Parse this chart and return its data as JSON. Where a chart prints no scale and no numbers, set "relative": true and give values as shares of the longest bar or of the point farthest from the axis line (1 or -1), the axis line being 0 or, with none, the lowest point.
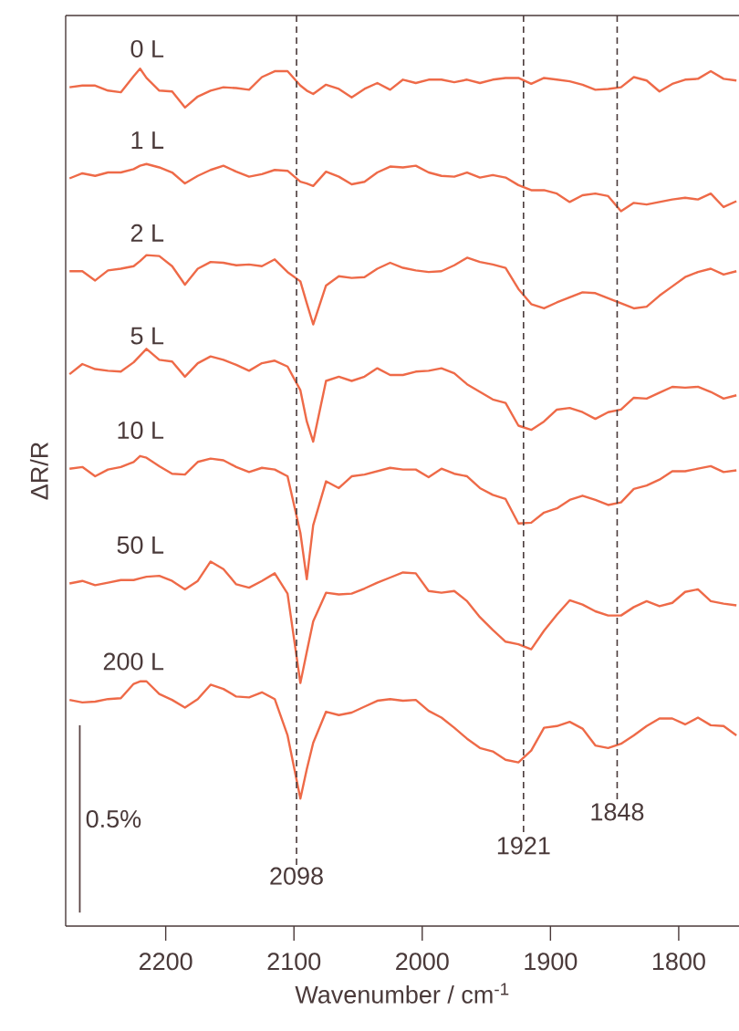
{
  "chart_data": {
    "type": "line",
    "relative": true,
    "xlabel": "Wavenumber / cm$^{-1}$",
    "ylabel": "ΔR/R",
    "x": [
      2275,
      2265,
      2255,
      2245,
      2235,
      2225,
      2220,
      2215,
      2205,
      2195,
      2185,
      2175,
      2165,
      2155,
      2145,
      2135,
      2125,
      2115,
      2105,
      2095,
      2090,
      2085,
      2075,
      2065,
      2055,
      2045,
      2035,
      2025,
      2015,
      2005,
      1995,
      1985,
      1975,
      1965,
      1955,
      1945,
      1935,
      1925,
      1915,
      1905,
      1895,
      1885,
      1875,
      1865,
      1855,
      1845,
      1835,
      1825,
      1815,
      1805,
      1795,
      1785,
      1775,
      1765,
      1755
    ],
    "xlim": [
      2278,
      1753
    ],
    "xticks": [
      2200,
      2100,
      2000,
      1900,
      1800
    ],
    "tick_labels": "x",
    "marker": "none",
    "line_style": "solid",
    "series": [
      {
        "name": "0 L",
        "color": "#ee6a48",
        "values": [
          0.978,
          0.98,
          0.98,
          0.974,
          0.972,
          0.991,
          1.0,
          0.989,
          0.974,
          0.973,
          0.954,
          0.967,
          0.974,
          0.978,
          0.977,
          0.975,
          0.99,
          0.997,
          0.997,
          0.98,
          0.974,
          0.97,
          0.981,
          0.976,
          0.966,
          0.976,
          0.983,
          0.975,
          0.987,
          0.983,
          0.987,
          0.987,
          0.984,
          0.987,
          0.983,
          0.987,
          0.989,
          0.989,
          0.982,
          0.989,
          0.987,
          0.985,
          0.981,
          0.975,
          0.976,
          0.978,
          0.99,
          0.986,
          0.973,
          0.982,
          0.987,
          0.988,
          0.997,
          0.988,
          0.986
        ]
      },
      {
        "name": "1 L",
        "color": "#ee6a48",
        "values": [
          0.87,
          0.876,
          0.873,
          0.877,
          0.877,
          0.881,
          0.885,
          0.887,
          0.883,
          0.877,
          0.864,
          0.873,
          0.88,
          0.885,
          0.878,
          0.872,
          0.875,
          0.88,
          0.879,
          0.866,
          0.864,
          0.861,
          0.878,
          0.872,
          0.863,
          0.866,
          0.877,
          0.884,
          0.883,
          0.885,
          0.877,
          0.873,
          0.872,
          0.877,
          0.871,
          0.874,
          0.871,
          0.862,
          0.856,
          0.856,
          0.852,
          0.842,
          0.85,
          0.852,
          0.849,
          0.831,
          0.841,
          0.839,
          0.842,
          0.845,
          0.847,
          0.845,
          0.852,
          0.836,
          0.843
        ]
      },
      {
        "name": "2 L",
        "color": "#ee6a48",
        "values": [
          0.76,
          0.76,
          0.749,
          0.761,
          0.763,
          0.766,
          0.772,
          0.779,
          0.778,
          0.766,
          0.744,
          0.763,
          0.771,
          0.77,
          0.767,
          0.768,
          0.766,
          0.774,
          0.759,
          0.748,
          0.722,
          0.697,
          0.743,
          0.754,
          0.752,
          0.753,
          0.763,
          0.77,
          0.764,
          0.761,
          0.759,
          0.76,
          0.767,
          0.776,
          0.771,
          0.768,
          0.764,
          0.739,
          0.721,
          0.716,
          0.723,
          0.729,
          0.735,
          0.734,
          0.728,
          0.722,
          0.716,
          0.718,
          0.731,
          0.742,
          0.753,
          0.759,
          0.763,
          0.756,
          0.76
        ]
      },
      {
        "name": "5 L",
        "color": "#ee6a48",
        "values": [
          0.638,
          0.65,
          0.644,
          0.642,
          0.641,
          0.652,
          0.66,
          0.668,
          0.655,
          0.653,
          0.635,
          0.651,
          0.659,
          0.655,
          0.649,
          0.642,
          0.651,
          0.654,
          0.647,
          0.619,
          0.582,
          0.558,
          0.63,
          0.635,
          0.63,
          0.635,
          0.645,
          0.637,
          0.637,
          0.641,
          0.642,
          0.645,
          0.639,
          0.626,
          0.617,
          0.608,
          0.604,
          0.577,
          0.572,
          0.582,
          0.596,
          0.598,
          0.593,
          0.585,
          0.593,
          0.596,
          0.61,
          0.609,
          0.616,
          0.623,
          0.622,
          0.623,
          0.617,
          0.609,
          0.613
        ]
      },
      {
        "name": "10 L",
        "color": "#ee6a48",
        "values": [
          0.526,
          0.528,
          0.517,
          0.525,
          0.528,
          0.534,
          0.541,
          0.539,
          0.529,
          0.52,
          0.519,
          0.534,
          0.538,
          0.536,
          0.528,
          0.522,
          0.527,
          0.525,
          0.517,
          0.45,
          0.395,
          0.459,
          0.511,
          0.503,
          0.517,
          0.519,
          0.523,
          0.527,
          0.525,
          0.525,
          0.516,
          0.526,
          0.52,
          0.517,
          0.503,
          0.495,
          0.49,
          0.461,
          0.462,
          0.474,
          0.479,
          0.489,
          0.494,
          0.489,
          0.483,
          0.486,
          0.502,
          0.506,
          0.513,
          0.523,
          0.523,
          0.526,
          0.529,
          0.522,
          0.524
        ]
      },
      {
        "name": "50 L",
        "color": "#ee6a48",
        "values": [
          0.39,
          0.393,
          0.388,
          0.391,
          0.394,
          0.394,
          0.396,
          0.398,
          0.399,
          0.393,
          0.383,
          0.393,
          0.416,
          0.407,
          0.389,
          0.385,
          0.393,
          0.402,
          0.378,
          0.272,
          0.309,
          0.345,
          0.379,
          0.377,
          0.378,
          0.384,
          0.391,
          0.397,
          0.403,
          0.402,
          0.381,
          0.379,
          0.381,
          0.369,
          0.35,
          0.335,
          0.321,
          0.318,
          0.312,
          0.334,
          0.353,
          0.37,
          0.365,
          0.357,
          0.352,
          0.352,
          0.362,
          0.369,
          0.363,
          0.367,
          0.38,
          0.383,
          0.369,
          0.366,
          0.364
        ]
      },
      {
        "name": "200 L",
        "color": "#ee6a48",
        "values": [
          0.252,
          0.249,
          0.25,
          0.253,
          0.254,
          0.271,
          0.274,
          0.274,
          0.259,
          0.252,
          0.243,
          0.253,
          0.27,
          0.265,
          0.256,
          0.255,
          0.261,
          0.253,
          0.21,
          0.135,
          0.17,
          0.201,
          0.238,
          0.234,
          0.237,
          0.244,
          0.251,
          0.253,
          0.251,
          0.252,
          0.239,
          0.231,
          0.219,
          0.206,
          0.195,
          0.191,
          0.181,
          0.178,
          0.192,
          0.219,
          0.221,
          0.226,
          0.218,
          0.198,
          0.195,
          0.2,
          0.21,
          0.221,
          0.23,
          0.23,
          0.223,
          0.231,
          0.222,
          0.221,
          0.21
        ]
      },
      {
        "type": "line",
        "color": "#5a4444",
        "x": [
          2267,
          2267
        ],
        "values": [
          0,
          0.222
        ]
      }
    ],
    "ref_lines": [
      {
        "axis": "x",
        "value": 2098,
        "label": "2098",
        "color": "#4a3a3a",
        "line_style": "dashed"
      },
      {
        "axis": "x",
        "value": 1921,
        "label": "1921",
        "color": "#4a3a3a",
        "line_style": "dashed"
      },
      {
        "axis": "x",
        "value": 1848,
        "label": "1848",
        "color": "#4a3a3a",
        "line_style": "dashed"
      }
    ],
    "annotations": [
      "0.5%"
    ]
  }
}
